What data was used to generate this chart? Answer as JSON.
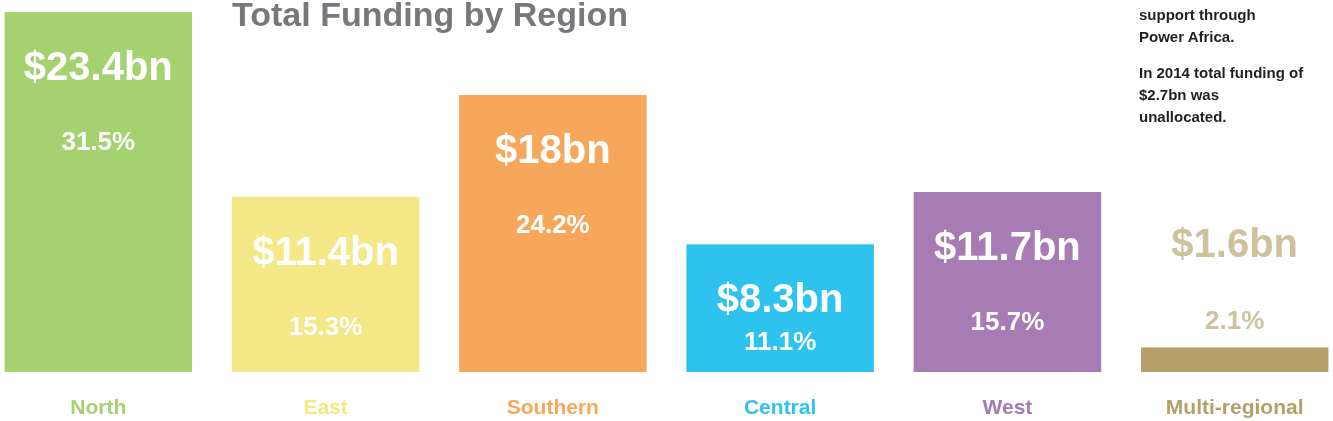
{
  "chart_data": {
    "type": "bar",
    "title": "Total Funding by Region",
    "categories": [
      "North",
      "East",
      "Southern",
      "Central",
      "West",
      "Multi-regional"
    ],
    "values": [
      23.4,
      11.4,
      18,
      8.3,
      11.7,
      1.6
    ],
    "colors": [
      "#a5d170",
      "#f4e785",
      "#f7a75a",
      "#2ec3ef",
      "#a77bb4",
      "#b5a06a"
    ],
    "value_labels": [
      "$23.4bn",
      "$11.4bn",
      "$18bn",
      "$8.3bn",
      "$11.7bn",
      "$1.6bn"
    ],
    "annotations": [
      "31.5%",
      "15.3%",
      "24.2%",
      "11.1%",
      "15.7%",
      "2.1%",
      "support through Power Africa.",
      "In 2014 total funding of $2.7bn was unallocated."
    ]
  }
}
